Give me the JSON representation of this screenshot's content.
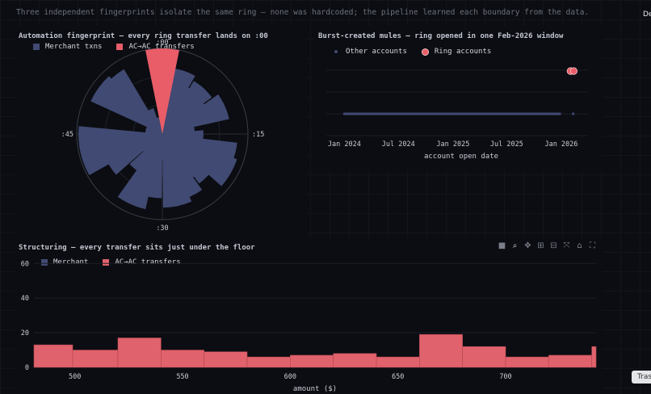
{
  "caption": "Three independent fingerprints isolate the same ring — none was hardcoded; the pipeline learned each boundary from the data.",
  "edge_text": "De",
  "tooltip_text": "Tras",
  "colors": {
    "merchant": "#414a73",
    "ring": "#e85d68",
    "hist": "#e0626c",
    "bg": "#0b0d12"
  },
  "modebar": [
    "camera-icon",
    "zoom-icon",
    "pan-icon",
    "zoom-in-icon",
    "zoom-out-icon",
    "autoscale-icon",
    "home-icon",
    "fullscreen-icon"
  ],
  "chart_data": [
    {
      "type": "polar-bar",
      "title": "Automation fingerprint — every ring transfer lands on :00",
      "legend": [
        "Merchant txns",
        "AC→AC transfers"
      ],
      "angular_ticks": [
        ":00",
        ":15",
        ":30",
        ":45"
      ],
      "series": [
        {
          "name": "Merchant txns",
          "minutes": [
            1,
            3,
            5,
            7,
            9,
            11,
            13,
            16,
            18,
            20,
            22,
            24,
            26,
            28,
            30,
            32,
            34,
            36,
            38,
            40,
            42,
            44,
            47,
            49,
            51,
            53,
            55,
            57,
            59
          ],
          "values": [
            0.35,
            0.78,
            0.62,
            0.72,
            0.6,
            0.8,
            0.38,
            0.48,
            0.88,
            0.92,
            0.72,
            0.62,
            0.8,
            0.86,
            0.3,
            0.75,
            0.9,
            0.52,
            0.3,
            0.72,
            0.98,
            0.98,
            0.2,
            0.2,
            0.92,
            0.88,
            0.32,
            0.2,
            0.1
          ]
        },
        {
          "name": "AC→AC transfers",
          "minutes": [
            0
          ],
          "values": [
            1.0
          ]
        }
      ]
    },
    {
      "type": "scatter",
      "title": "Burst-created mules — ring opened in one Feb-2026 window",
      "legend": [
        "Other accounts",
        "Ring accounts"
      ],
      "xlabel": "account open date",
      "xticks": [
        "Jan 2024",
        "Jul 2024",
        "Jan 2025",
        "Jul 2025",
        "Jan 2026"
      ],
      "xlim": [
        "2023-11-01",
        "2026-04-01"
      ],
      "series": [
        {
          "name": "Other accounts",
          "x_range": [
            "2024-01-01",
            "2025-12-31"
          ],
          "y": 0,
          "extra_point": "2026-02-10"
        },
        {
          "name": "Ring accounts",
          "x": [
            "2026-02-01",
            "2026-02-12"
          ],
          "y": 1
        }
      ]
    },
    {
      "type": "bar",
      "title": "Structuring — every transfer sits just under the floor",
      "legend": [
        "Merchant",
        "AC→AC transfers"
      ],
      "xlabel": "amount ($)",
      "xticks": [
        500,
        550,
        600,
        650,
        700
      ],
      "yticks": [
        0,
        20,
        40,
        60
      ],
      "xlim": [
        481,
        742
      ],
      "ylim": [
        0,
        62
      ],
      "bins": [
        {
          "x0": 481,
          "x1": 499,
          "v": 13
        },
        {
          "x0": 499,
          "x1": 520,
          "v": 10
        },
        {
          "x0": 520,
          "x1": 540,
          "v": 17
        },
        {
          "x0": 540,
          "x1": 560,
          "v": 10
        },
        {
          "x0": 560,
          "x1": 580,
          "v": 9
        },
        {
          "x0": 580,
          "x1": 600,
          "v": 6
        },
        {
          "x0": 600,
          "x1": 620,
          "v": 7
        },
        {
          "x0": 620,
          "x1": 640,
          "v": 8
        },
        {
          "x0": 640,
          "x1": 660,
          "v": 6
        },
        {
          "x0": 660,
          "x1": 680,
          "v": 19
        },
        {
          "x0": 680,
          "x1": 700,
          "v": 12
        },
        {
          "x0": 700,
          "x1": 720,
          "v": 6
        },
        {
          "x0": 720,
          "x1": 740,
          "v": 7
        },
        {
          "x0": 740,
          "x1": 742,
          "v": 12
        }
      ]
    }
  ]
}
